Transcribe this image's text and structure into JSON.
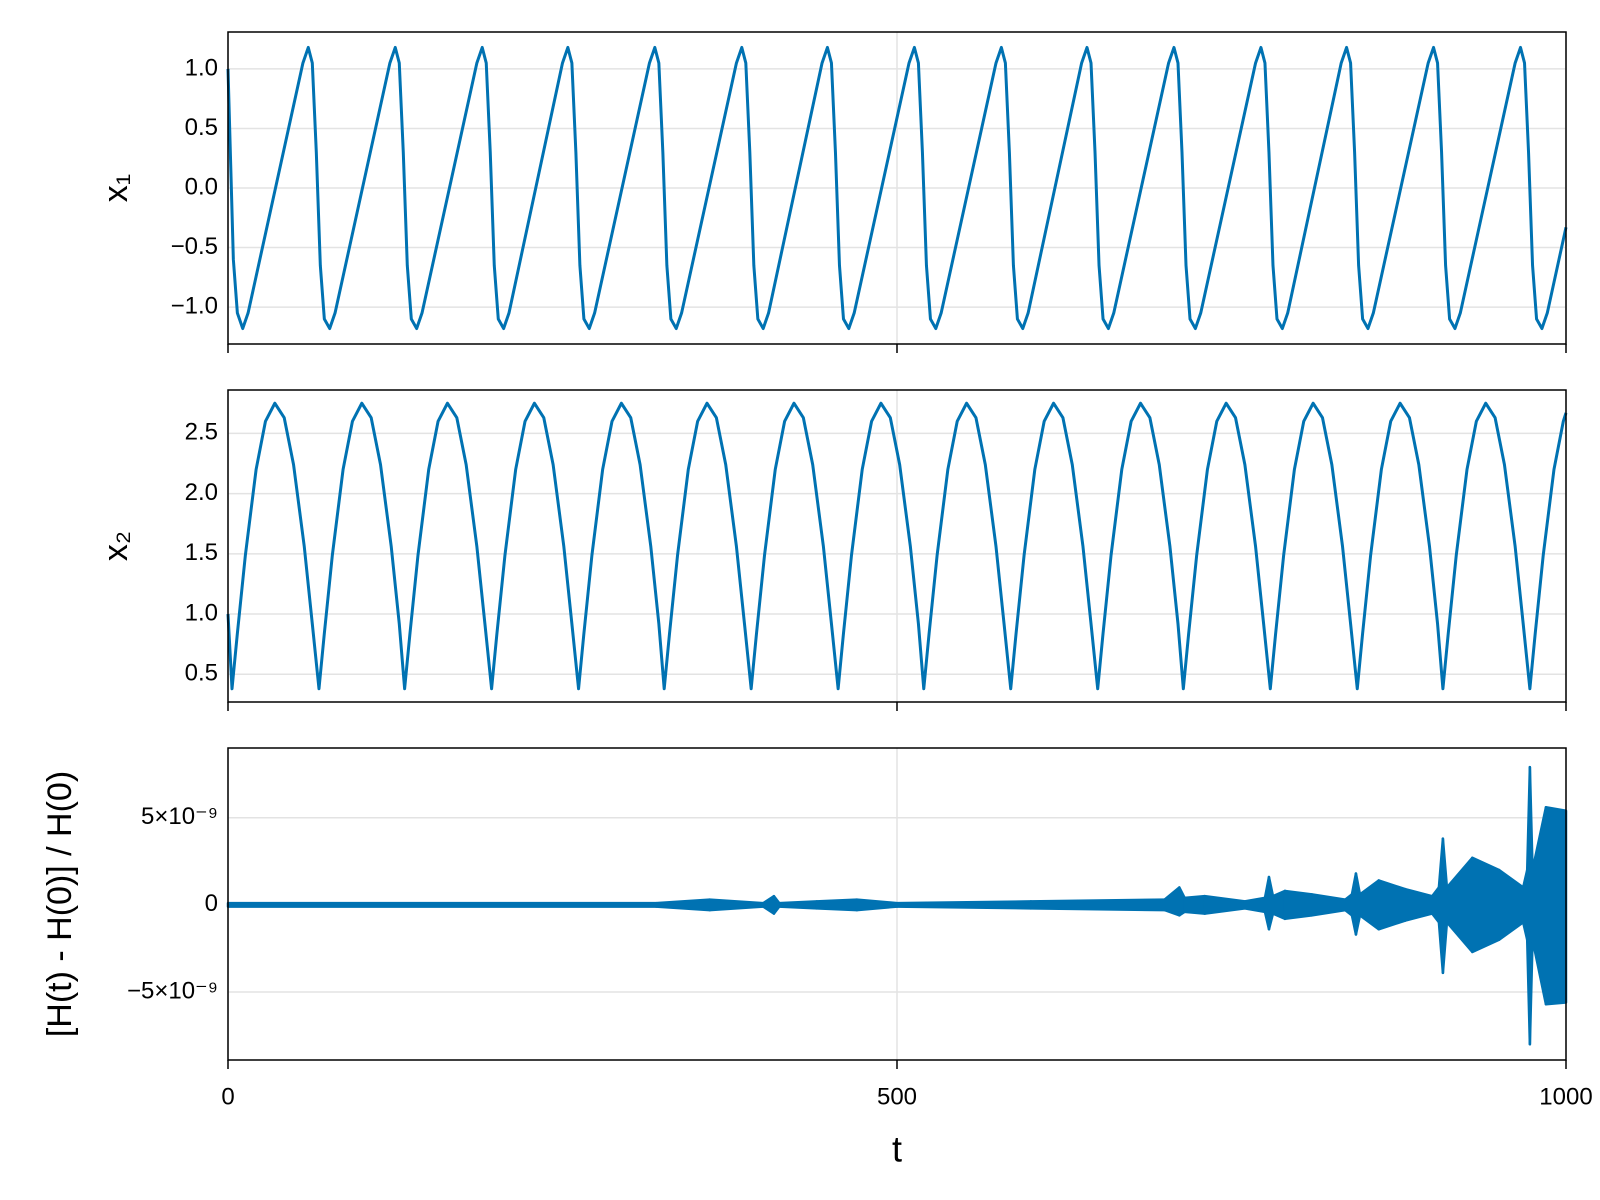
{
  "chart_data": [
    {
      "type": "line",
      "y_label": "x₁",
      "color": "#0072b2",
      "grid": true,
      "xlim": [
        0,
        1000
      ],
      "xticks": [
        0,
        500,
        1000
      ],
      "ylim": [
        -1.31,
        1.31
      ],
      "yticks": [
        {
          "value": -1.0,
          "label": "−1.0"
        },
        {
          "value": -0.5,
          "label": "−0.5"
        },
        {
          "value": 0.0,
          "label": "0.0"
        },
        {
          "value": 0.5,
          "label": "0.5"
        },
        {
          "value": 1.0,
          "label": "1.0"
        }
      ],
      "x": [
        0,
        2,
        4,
        7,
        11,
        15,
        56,
        60,
        63,
        66,
        69,
        72,
        76,
        80,
        121,
        125,
        128,
        131,
        134,
        137,
        141,
        145,
        186,
        190,
        193,
        196,
        199,
        202,
        206,
        210,
        250,
        254,
        257,
        260,
        263,
        266,
        270,
        274,
        315,
        319,
        322,
        325,
        328,
        331,
        335,
        339,
        380,
        384,
        387,
        390,
        393,
        396,
        400,
        404,
        444,
        448,
        451,
        454,
        457,
        460,
        464,
        468,
        509,
        513,
        516,
        519,
        522,
        525,
        529,
        533,
        574,
        578,
        581,
        584,
        587,
        590,
        594,
        598,
        638,
        642,
        645,
        648,
        651,
        654,
        658,
        662,
        703,
        707,
        710,
        713,
        716,
        719,
        723,
        727,
        768,
        772,
        775,
        778,
        781,
        784,
        788,
        792,
        832,
        836,
        839,
        842,
        845,
        848,
        852,
        856,
        897,
        901,
        904,
        907,
        910,
        913,
        917,
        921,
        962,
        966,
        969,
        972,
        975,
        978,
        982,
        986,
        1000
      ],
      "values": [
        1.0,
        0.2,
        -0.6,
        -1.05,
        -1.18,
        -1.05,
        1.05,
        1.18,
        1.05,
        0.3,
        -0.65,
        -1.1,
        -1.18,
        -1.05,
        1.05,
        1.18,
        1.05,
        0.3,
        -0.65,
        -1.1,
        -1.18,
        -1.05,
        1.05,
        1.18,
        1.05,
        0.3,
        -0.65,
        -1.1,
        -1.18,
        -1.05,
        1.05,
        1.18,
        1.05,
        0.3,
        -0.65,
        -1.1,
        -1.18,
        -1.05,
        1.05,
        1.18,
        1.05,
        0.3,
        -0.65,
        -1.1,
        -1.18,
        -1.05,
        1.05,
        1.18,
        1.05,
        0.3,
        -0.65,
        -1.1,
        -1.18,
        -1.05,
        1.05,
        1.18,
        1.05,
        0.3,
        -0.65,
        -1.1,
        -1.18,
        -1.05,
        1.05,
        1.18,
        1.05,
        0.3,
        -0.65,
        -1.1,
        -1.18,
        -1.05,
        1.05,
        1.18,
        1.05,
        0.3,
        -0.65,
        -1.1,
        -1.18,
        -1.05,
        1.05,
        1.18,
        1.05,
        0.3,
        -0.65,
        -1.1,
        -1.18,
        -1.05,
        1.05,
        1.18,
        1.05,
        0.3,
        -0.65,
        -1.1,
        -1.18,
        -1.05,
        1.05,
        1.18,
        1.05,
        0.3,
        -0.65,
        -1.1,
        -1.18,
        -1.05,
        1.05,
        1.18,
        1.05,
        0.3,
        -0.65,
        -1.1,
        -1.18,
        -1.05,
        1.05,
        1.18,
        1.05,
        0.3,
        -0.65,
        -1.1,
        -1.18,
        -1.05,
        1.05,
        1.18,
        1.05,
        0.3,
        -0.65,
        -1.1,
        -1.18,
        -1.05,
        -0.33
      ]
    },
    {
      "type": "line",
      "y_label": "x₂",
      "color": "#0072b2",
      "grid": true,
      "xlim": [
        0,
        1000
      ],
      "xticks": [
        0,
        500,
        1000
      ],
      "ylim": [
        0.27,
        2.86
      ],
      "yticks": [
        0.5,
        {
          "value": 1.0,
          "label": "1.0"
        },
        1.5,
        {
          "value": 2.0,
          "label": "2.0"
        },
        2.5
      ],
      "x": [
        0,
        3,
        7,
        13,
        21,
        28,
        35,
        42,
        49,
        57,
        63,
        68,
        72,
        78,
        86,
        93,
        100,
        107,
        114,
        122,
        128,
        132,
        136,
        142,
        150,
        157,
        164,
        171,
        178,
        186,
        192,
        197,
        201,
        207,
        215,
        222,
        229,
        236,
        243,
        251,
        257,
        262,
        266,
        272,
        280,
        287,
        294,
        301,
        308,
        316,
        322,
        326,
        330,
        336,
        344,
        351,
        358,
        365,
        372,
        380,
        386,
        391,
        395,
        401,
        409,
        416,
        423,
        430,
        437,
        445,
        451,
        456,
        460,
        466,
        474,
        481,
        488,
        495,
        502,
        510,
        516,
        520,
        524,
        530,
        538,
        545,
        552,
        559,
        566,
        574,
        580,
        585,
        589,
        595,
        603,
        610,
        617,
        624,
        631,
        639,
        645,
        650,
        654,
        660,
        668,
        675,
        682,
        689,
        696,
        704,
        710,
        714,
        718,
        724,
        732,
        739,
        746,
        753,
        760,
        768,
        774,
        779,
        783,
        789,
        797,
        804,
        811,
        818,
        825,
        833,
        839,
        844,
        848,
        854,
        862,
        869,
        876,
        883,
        890,
        898,
        904,
        908,
        912,
        918,
        926,
        933,
        940,
        947,
        954,
        962,
        968,
        973,
        977,
        983,
        991,
        998,
        1000
      ],
      "values": [
        1.0,
        0.38,
        0.84,
        1.49,
        2.2,
        2.6,
        2.75,
        2.63,
        2.24,
        1.56,
        0.92,
        0.38,
        0.84,
        1.49,
        2.2,
        2.6,
        2.75,
        2.63,
        2.24,
        1.56,
        0.92,
        0.38,
        0.84,
        1.49,
        2.2,
        2.6,
        2.75,
        2.63,
        2.24,
        1.56,
        0.92,
        0.38,
        0.84,
        1.49,
        2.2,
        2.6,
        2.75,
        2.63,
        2.24,
        1.56,
        0.92,
        0.38,
        0.84,
        1.49,
        2.2,
        2.6,
        2.75,
        2.63,
        2.24,
        1.56,
        0.92,
        0.38,
        0.84,
        1.49,
        2.2,
        2.6,
        2.75,
        2.63,
        2.24,
        1.56,
        0.92,
        0.38,
        0.84,
        1.49,
        2.2,
        2.6,
        2.75,
        2.63,
        2.24,
        1.56,
        0.92,
        0.38,
        0.84,
        1.49,
        2.2,
        2.6,
        2.75,
        2.63,
        2.24,
        1.56,
        0.92,
        0.38,
        0.84,
        1.49,
        2.2,
        2.6,
        2.75,
        2.63,
        2.24,
        1.56,
        0.92,
        0.38,
        0.84,
        1.49,
        2.2,
        2.6,
        2.75,
        2.63,
        2.24,
        1.56,
        0.92,
        0.38,
        0.84,
        1.49,
        2.2,
        2.6,
        2.75,
        2.63,
        2.24,
        1.56,
        0.92,
        0.38,
        0.84,
        1.49,
        2.2,
        2.6,
        2.75,
        2.63,
        2.24,
        1.56,
        0.92,
        0.38,
        0.84,
        1.49,
        2.2,
        2.6,
        2.75,
        2.63,
        2.24,
        1.56,
        0.92,
        0.38,
        0.84,
        1.49,
        2.2,
        2.6,
        2.75,
        2.63,
        2.24,
        1.56,
        0.92,
        0.38,
        0.84,
        1.49,
        2.2,
        2.6,
        2.75,
        2.63,
        2.24,
        1.56,
        0.92,
        0.38,
        0.84,
        1.49,
        2.2,
        2.6,
        2.67
      ]
    },
    {
      "type": "band",
      "y_label": "[H(t) - H(0)] / H(0)",
      "x_label": "t",
      "color": "#0072b2",
      "grid": true,
      "xlim": [
        0,
        1000
      ],
      "xticks": [
        0,
        500,
        1000
      ],
      "ylim": [
        -8.9e-09,
        9e-09
      ],
      "yticks": [
        {
          "value": -5e-09,
          "label": "−5×10⁻⁹"
        },
        0,
        {
          "value": 5e-09,
          "label": "5×10⁻⁹"
        }
      ],
      "x": [
        0,
        320,
        360,
        400,
        408,
        412,
        440,
        470,
        500,
        600,
        700,
        711,
        715,
        730,
        760,
        775,
        778,
        781,
        790,
        810,
        835,
        840,
        843,
        846,
        860,
        880,
        900,
        905,
        908,
        911,
        930,
        950,
        968,
        971,
        973,
        975,
        985,
        1000
      ],
      "upper": [
        1e-10,
        1e-10,
        3e-10,
        1e-10,
        5e-10,
        1e-10,
        2e-10,
        3e-10,
        1e-10,
        2e-10,
        3e-10,
        1e-09,
        4e-10,
        5e-10,
        2e-10,
        4e-10,
        1.6e-09,
        5e-10,
        8e-10,
        6e-10,
        3e-10,
        6e-10,
        1.8e-09,
        6e-10,
        1.4e-09,
        9e-10,
        5e-10,
        1e-09,
        3.8e-09,
        1e-09,
        2.7e-09,
        2e-09,
        1e-09,
        2e-09,
        7.9e-09,
        2e-09,
        5.6e-09,
        5.4e-09
      ],
      "lower": [
        -1e-10,
        -1e-10,
        -3e-10,
        -1e-10,
        -5e-10,
        -1e-10,
        -2e-10,
        -3e-10,
        -1e-10,
        -2e-10,
        -3e-10,
        -6e-10,
        -4e-10,
        -5e-10,
        -2e-10,
        -4e-10,
        -1.4e-09,
        -5e-10,
        -8e-10,
        -6e-10,
        -3e-10,
        -6e-10,
        -1.7e-09,
        -6e-10,
        -1.4e-09,
        -9e-10,
        -5e-10,
        -1e-09,
        -3.9e-09,
        -1e-09,
        -2.7e-09,
        -2e-09,
        -1e-09,
        -2e-09,
        -8e-09,
        -2e-09,
        -5.7e-09,
        -5.6e-09
      ]
    }
  ]
}
